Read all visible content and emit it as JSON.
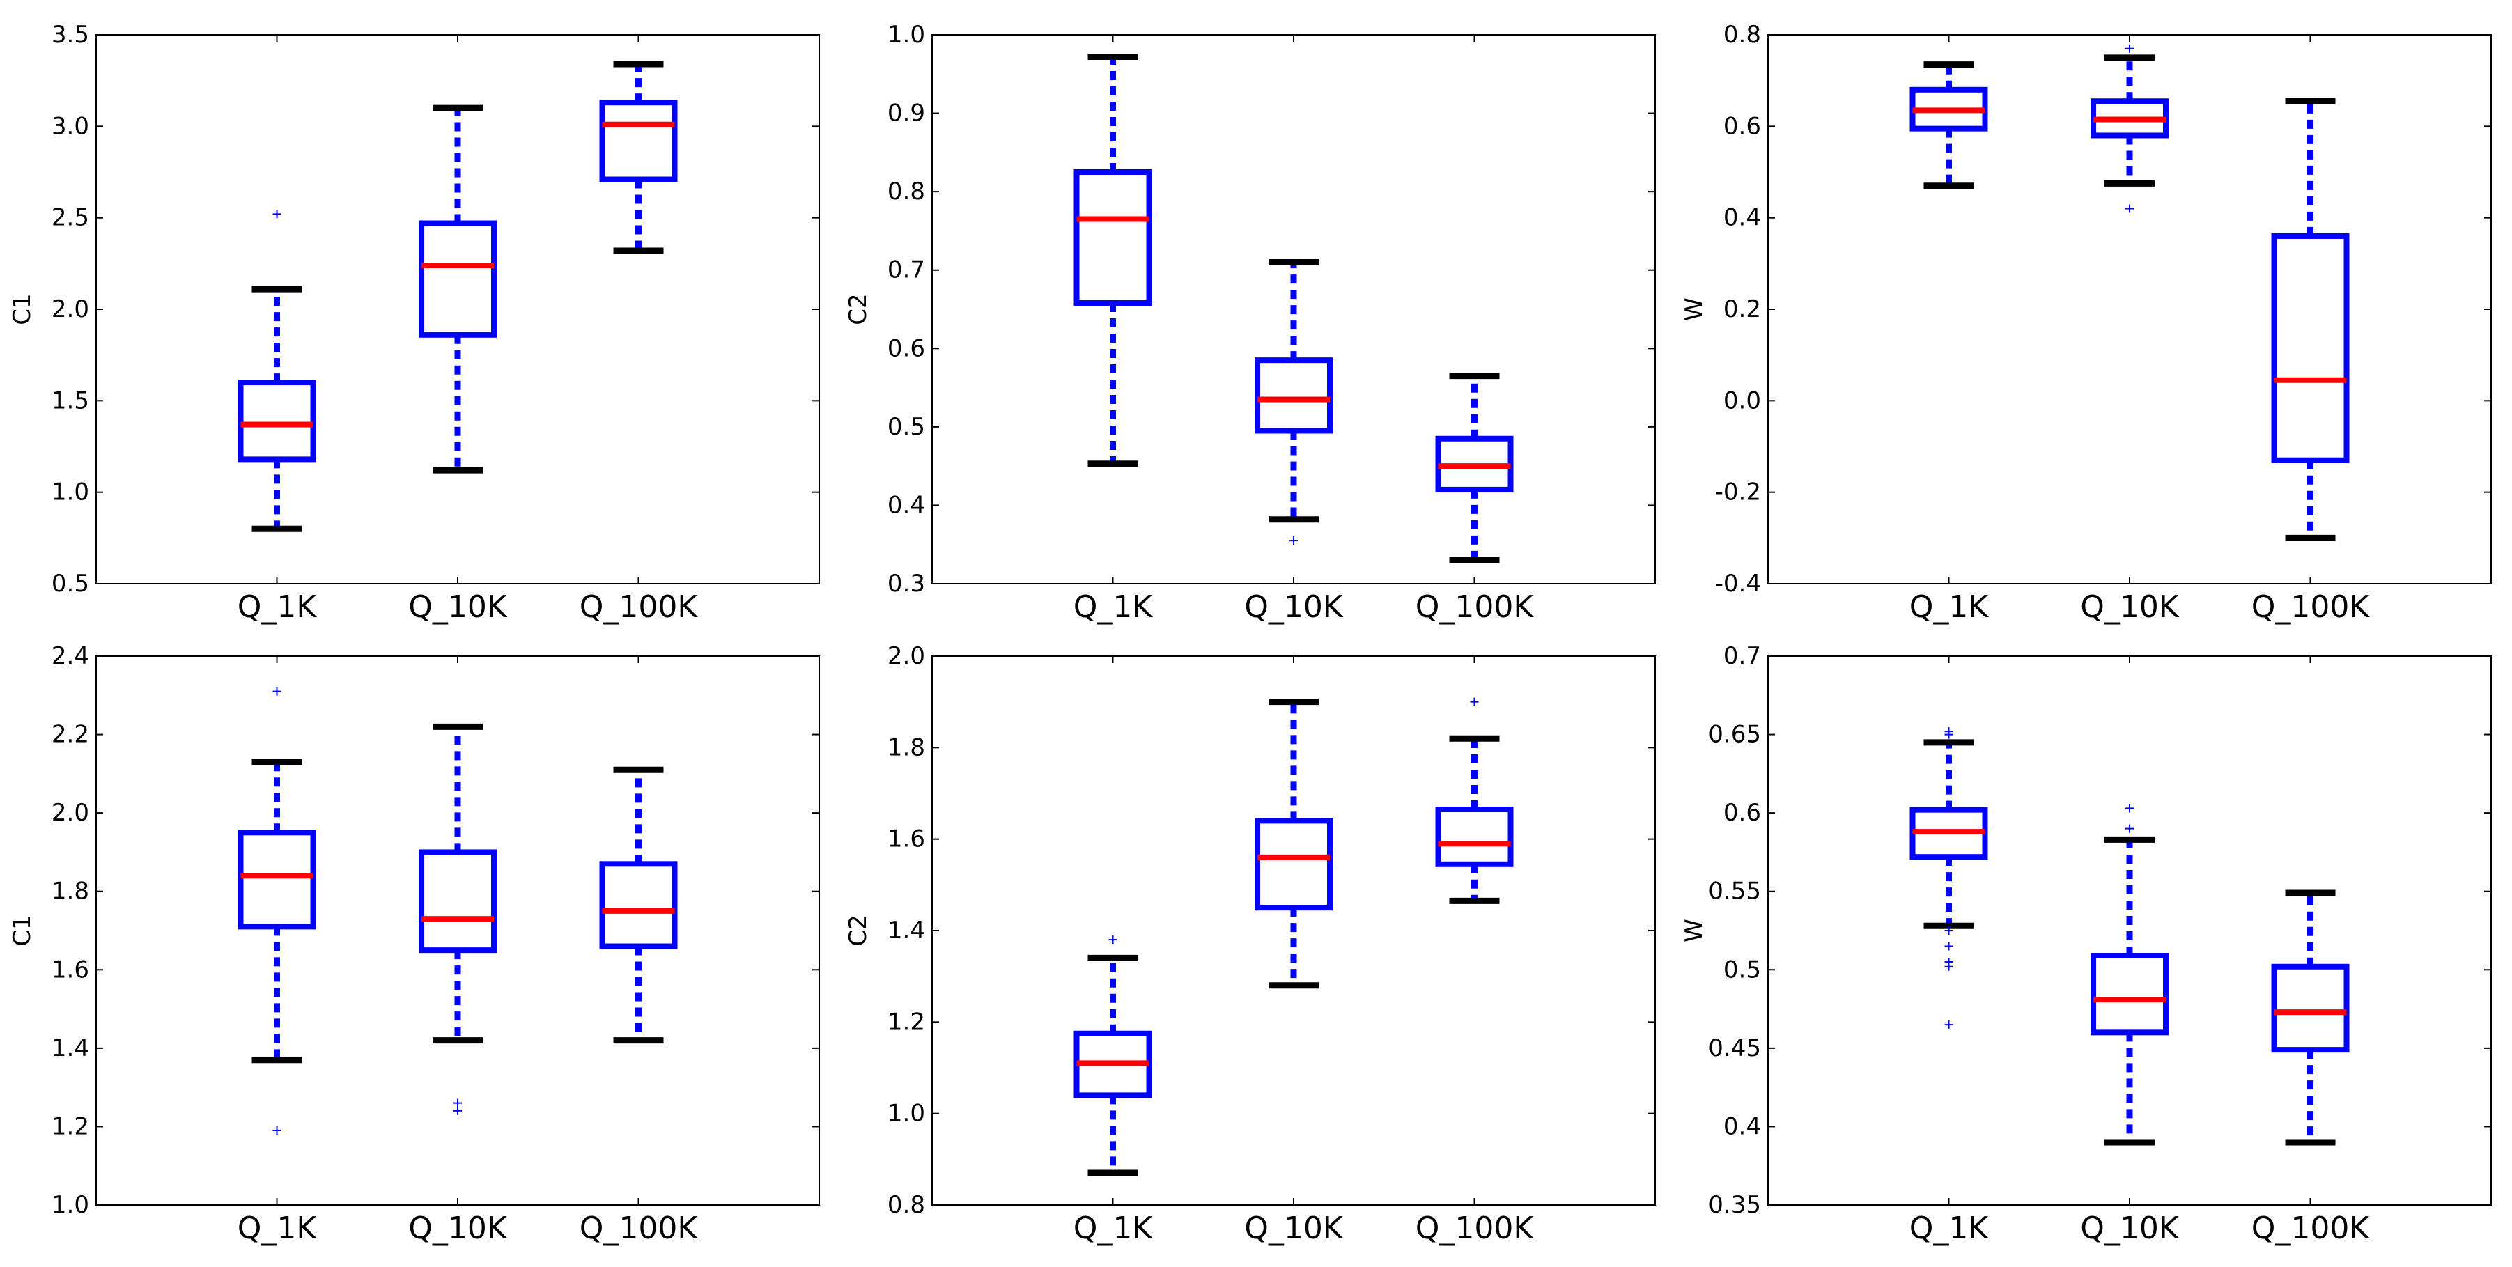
{
  "colors": {
    "box": "#0000ff",
    "median": "#ff0000",
    "cap": "#000000",
    "flier": "#0000ff",
    "frame": "#000000"
  },
  "chart_data": [
    {
      "type": "box",
      "ylabel": "C1",
      "ylim": [
        0.5,
        3.5
      ],
      "yticks": [
        0.5,
        1.0,
        1.5,
        2.0,
        2.5,
        3.0,
        3.5
      ],
      "ytick_labels": [
        "0.5",
        "1.0",
        "1.5",
        "2.0",
        "2.5",
        "3.0",
        "3.5"
      ],
      "categories": [
        "Q_1K",
        "Q_10K",
        "Q_100K"
      ],
      "boxes": [
        {
          "whislo": 0.8,
          "q1": 1.18,
          "med": 1.37,
          "q3": 1.6,
          "whishi": 2.11,
          "fliers": [
            2.52
          ]
        },
        {
          "whislo": 1.12,
          "q1": 1.86,
          "med": 2.24,
          "q3": 2.47,
          "whishi": 3.1,
          "fliers": []
        },
        {
          "whislo": 2.32,
          "q1": 2.71,
          "med": 3.01,
          "q3": 3.13,
          "whishi": 3.34,
          "fliers": []
        }
      ]
    },
    {
      "type": "box",
      "ylabel": "C2",
      "ylim": [
        0.3,
        1.0
      ],
      "yticks": [
        0.3,
        0.4,
        0.5,
        0.6,
        0.7,
        0.8,
        0.9,
        1.0
      ],
      "ytick_labels": [
        "0.3",
        "0.4",
        "0.5",
        "0.6",
        "0.7",
        "0.8",
        "0.9",
        "1.0"
      ],
      "categories": [
        "Q_1K",
        "Q_10K",
        "Q_100K"
      ],
      "boxes": [
        {
          "whislo": 0.453,
          "q1": 0.658,
          "med": 0.765,
          "q3": 0.825,
          "whishi": 0.972,
          "fliers": []
        },
        {
          "whislo": 0.382,
          "q1": 0.495,
          "med": 0.535,
          "q3": 0.585,
          "whishi": 0.71,
          "fliers": [
            0.355
          ]
        },
        {
          "whislo": 0.33,
          "q1": 0.42,
          "med": 0.45,
          "q3": 0.485,
          "whishi": 0.565,
          "fliers": []
        }
      ]
    },
    {
      "type": "box",
      "ylabel": "W",
      "ylim": [
        -0.4,
        0.8
      ],
      "yticks": [
        -0.4,
        -0.2,
        0.0,
        0.2,
        0.4,
        0.6,
        0.8
      ],
      "ytick_labels": [
        "-0.4",
        "-0.2",
        "0.0",
        "0.2",
        "0.4",
        "0.6",
        "0.8"
      ],
      "categories": [
        "Q_1K",
        "Q_10K",
        "Q_100K"
      ],
      "boxes": [
        {
          "whislo": 0.47,
          "q1": 0.595,
          "med": 0.635,
          "q3": 0.68,
          "whishi": 0.735,
          "fliers": []
        },
        {
          "whislo": 0.475,
          "q1": 0.58,
          "med": 0.615,
          "q3": 0.655,
          "whishi": 0.75,
          "fliers": [
            0.42,
            0.77
          ]
        },
        {
          "whislo": -0.3,
          "q1": -0.13,
          "med": 0.045,
          "q3": 0.36,
          "whishi": 0.655,
          "fliers": []
        }
      ]
    },
    {
      "type": "box",
      "ylabel": "C1",
      "ylim": [
        1.0,
        2.4
      ],
      "yticks": [
        1.0,
        1.2,
        1.4,
        1.6,
        1.8,
        2.0,
        2.2,
        2.4
      ],
      "ytick_labels": [
        "1.0",
        "1.2",
        "1.4",
        "1.6",
        "1.8",
        "2.0",
        "2.2",
        "2.4"
      ],
      "categories": [
        "Q_1K",
        "Q_10K",
        "Q_100K"
      ],
      "boxes": [
        {
          "whislo": 1.37,
          "q1": 1.71,
          "med": 1.84,
          "q3": 1.95,
          "whishi": 2.13,
          "fliers": [
            1.19,
            2.31
          ]
        },
        {
          "whislo": 1.42,
          "q1": 1.65,
          "med": 1.73,
          "q3": 1.9,
          "whishi": 2.22,
          "fliers": [
            1.24,
            1.26
          ]
        },
        {
          "whislo": 1.42,
          "q1": 1.66,
          "med": 1.75,
          "q3": 1.87,
          "whishi": 2.11,
          "fliers": []
        }
      ]
    },
    {
      "type": "box",
      "ylabel": "C2",
      "ylim": [
        0.8,
        2.0
      ],
      "yticks": [
        0.8,
        1.0,
        1.2,
        1.4,
        1.6,
        1.8,
        2.0
      ],
      "ytick_labels": [
        "0.8",
        "1.0",
        "1.2",
        "1.4",
        "1.6",
        "1.8",
        "2.0"
      ],
      "categories": [
        "Q_1K",
        "Q_10K",
        "Q_100K"
      ],
      "boxes": [
        {
          "whislo": 0.87,
          "q1": 1.04,
          "med": 1.11,
          "q3": 1.175,
          "whishi": 1.34,
          "fliers": [
            1.38
          ]
        },
        {
          "whislo": 1.28,
          "q1": 1.45,
          "med": 1.56,
          "q3": 1.64,
          "whishi": 1.9,
          "fliers": []
        },
        {
          "whislo": 1.465,
          "q1": 1.545,
          "med": 1.59,
          "q3": 1.665,
          "whishi": 1.82,
          "fliers": [
            1.9
          ]
        }
      ]
    },
    {
      "type": "box",
      "ylabel": "W",
      "ylim": [
        0.35,
        0.7
      ],
      "yticks": [
        0.35,
        0.4,
        0.45,
        0.5,
        0.55,
        0.6,
        0.65,
        0.7
      ],
      "ytick_labels": [
        "0.35",
        "0.4",
        "0.45",
        "0.5",
        "0.55",
        "0.6",
        "0.65",
        "0.7"
      ],
      "categories": [
        "Q_1K",
        "Q_10K",
        "Q_100K"
      ],
      "boxes": [
        {
          "whislo": 0.528,
          "q1": 0.572,
          "med": 0.588,
          "q3": 0.602,
          "whishi": 0.645,
          "fliers": [
            0.465,
            0.502,
            0.505,
            0.515,
            0.525,
            0.65,
            0.652
          ]
        },
        {
          "whislo": 0.39,
          "q1": 0.46,
          "med": 0.481,
          "q3": 0.509,
          "whishi": 0.583,
          "fliers": [
            0.59,
            0.603
          ]
        },
        {
          "whislo": 0.39,
          "q1": 0.449,
          "med": 0.473,
          "q3": 0.502,
          "whishi": 0.549,
          "fliers": []
        }
      ]
    }
  ]
}
